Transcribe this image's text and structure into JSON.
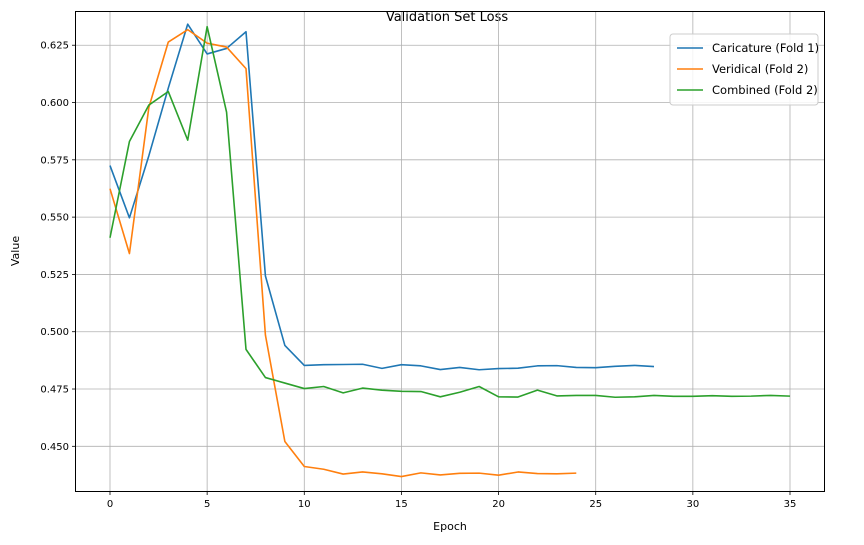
{
  "chart_data": {
    "type": "line",
    "title": "Validation Set Loss",
    "xlabel": "Epoch",
    "ylabel": "Value",
    "xlim": [
      -1.75,
      36.75
    ],
    "ylim": [
      0.4305,
      0.6395
    ],
    "xticks": [
      0,
      5,
      10,
      15,
      20,
      25,
      30,
      35
    ],
    "yticks": [
      0.45,
      0.475,
      0.5,
      0.525,
      0.55,
      0.575,
      0.6,
      0.625
    ],
    "ytick_labels": [
      "0.450",
      "0.475",
      "0.500",
      "0.525",
      "0.550",
      "0.575",
      "0.600",
      "0.625"
    ],
    "grid": true,
    "legend": "top-right",
    "series": [
      {
        "name": "Caricature (Fold 1)",
        "color": "#1f77b4",
        "values": [
          0.5725,
          0.5497,
          0.5768,
          0.6063,
          0.6342,
          0.6212,
          0.6236,
          0.6309,
          0.5243,
          0.494,
          0.4853,
          0.4856,
          0.4857,
          0.4858,
          0.484,
          0.4856,
          0.4851,
          0.4835,
          0.4844,
          0.4834,
          0.4839,
          0.4841,
          0.4851,
          0.4852,
          0.4844,
          0.4843,
          0.4849,
          0.4853,
          0.4848
        ]
      },
      {
        "name": "Veridical (Fold 2)",
        "color": "#ff7f0e",
        "values": [
          0.5624,
          0.5341,
          0.5979,
          0.6264,
          0.6318,
          0.6259,
          0.6242,
          0.6148,
          0.4985,
          0.4521,
          0.4412,
          0.44,
          0.4379,
          0.4388,
          0.438,
          0.4368,
          0.4384,
          0.4375,
          0.4382,
          0.4383,
          0.4374,
          0.4388,
          0.4381,
          0.438,
          0.4383
        ]
      },
      {
        "name": "Combined (Fold 2)",
        "color": "#2ca02c",
        "values": [
          0.541,
          0.583,
          0.5989,
          0.6048,
          0.5836,
          0.6331,
          0.5958,
          0.4923,
          0.48,
          0.4776,
          0.4752,
          0.4761,
          0.4733,
          0.4754,
          0.4745,
          0.474,
          0.4739,
          0.4716,
          0.4736,
          0.4761,
          0.4716,
          0.4715,
          0.4745,
          0.472,
          0.4722,
          0.4722,
          0.4714,
          0.4716,
          0.4722,
          0.4718,
          0.4718,
          0.4721,
          0.4718,
          0.4719,
          0.4722,
          0.4719
        ]
      }
    ]
  }
}
